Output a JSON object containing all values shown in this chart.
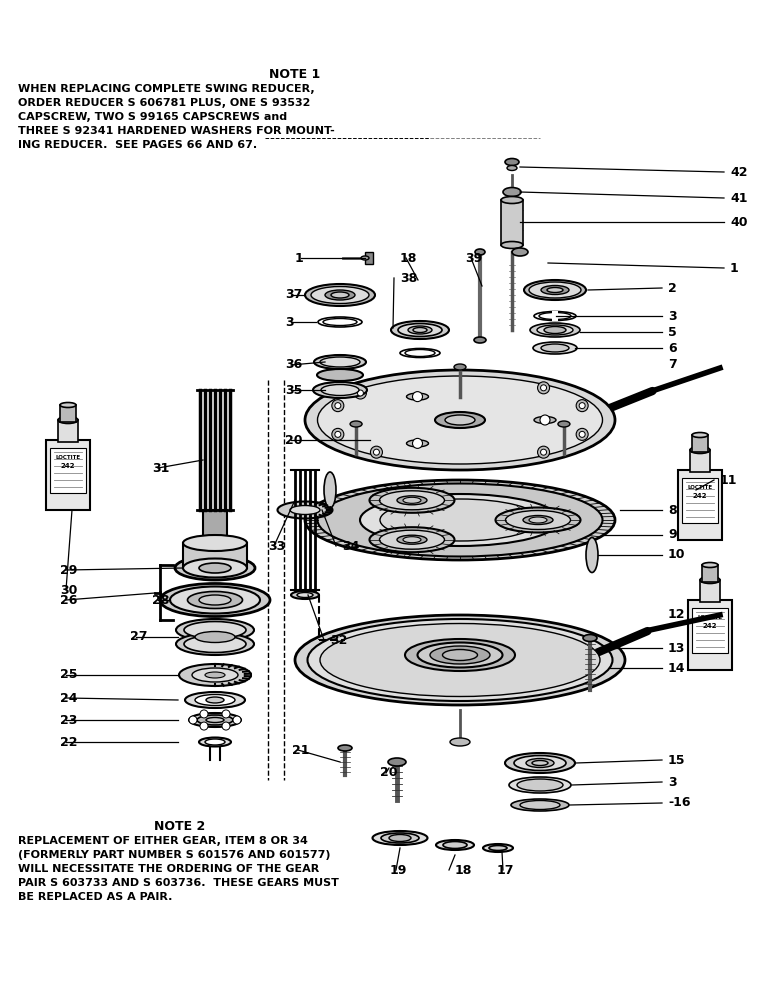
{
  "background_color": "#ffffff",
  "note1_title": "NOTE 1",
  "note1_text_lines": [
    "WHEN REPLACING COMPLETE SWING REDUCER,",
    "ORDER REDUCER S 606781 PLUS, ONE S 93532",
    "CAPSCREW, TWO S 99165 CAPSCREWS and",
    "THREE S 92341 HARDENED WASHERS FOR MOUNT-",
    "ING REDUCER.  SEE PAGES 66 AND 67."
  ],
  "note2_title": "NOTE 2",
  "note2_text_lines": [
    "REPLACEMENT OF EITHER GEAR, ITEM 8 OR 34",
    "(FORMERLY PART NUMBER S 601576 AND 601577)",
    "WILL NECESSITATE THE ORDERING OF THE GEAR",
    "PAIR S 603733 AND S 603736.  THESE GEARS MUST",
    "BE REPLACED AS A PAIR."
  ],
  "fig_width": 7.72,
  "fig_height": 10.0,
  "dpi": 100
}
